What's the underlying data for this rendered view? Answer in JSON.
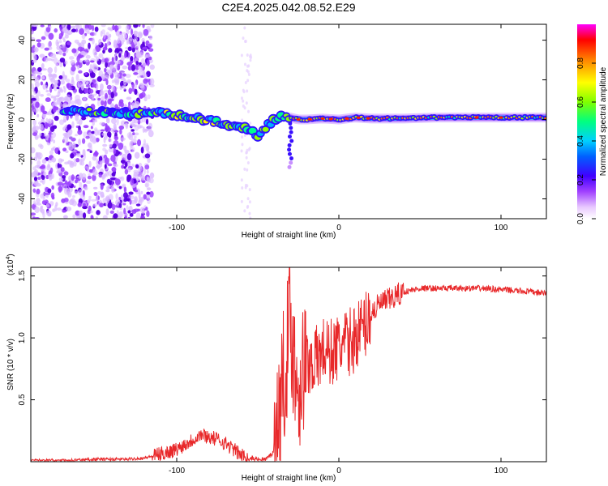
{
  "title": "C2E4.2025.042.08.52.E29",
  "chart_data": [
    {
      "type": "heatmap",
      "xlabel": "Height of straight line (km)",
      "ylabel": "Frequency (Hz)",
      "xlim": [
        -190,
        128
      ],
      "ylim": [
        -50,
        48
      ],
      "xticks": [
        -100,
        0,
        100
      ],
      "yticks": [
        -40,
        -20,
        0,
        20,
        40
      ],
      "colorbar": {
        "label": "Normalized spectral amplitude",
        "range": [
          0,
          1
        ],
        "ticks": [
          0.0,
          0.2,
          0.4,
          0.6,
          0.8
        ],
        "colors": [
          "#ffffff",
          "#cc88ff",
          "#6600ff",
          "#0000ff",
          "#00ccff",
          "#00ff80",
          "#80ff00",
          "#ffff00",
          "#ff8000",
          "#ff0000",
          "#ff00ff"
        ]
      },
      "ridge": {
        "x": [
          -190,
          -160,
          -140,
          -120,
          -110,
          -100,
          -90,
          -80,
          -70,
          -60,
          -55,
          -50,
          -45,
          -40,
          -35,
          -30,
          -25,
          -20,
          -10,
          0,
          10,
          20,
          40,
          60,
          80,
          100,
          128
        ],
        "y": [
          4,
          4,
          3.5,
          3.5,
          3,
          2,
          0.5,
          -0.5,
          -2,
          -4,
          -6,
          -8,
          -4,
          0,
          2,
          1,
          0,
          0,
          0.5,
          0,
          1,
          0.5,
          0.5,
          1,
          1,
          1,
          1
        ]
      },
      "grid": false,
      "legend": "colorbar-right"
    },
    {
      "type": "line",
      "xlabel": "Height of straight line (km)",
      "ylabel": "SNR (10 * v/v)",
      "scale_label": "(x10",
      "scale_exp": "4",
      "xlim": [
        -190,
        128
      ],
      "ylim": [
        0,
        1.57
      ],
      "xticks": [
        -100,
        0,
        100
      ],
      "yticks": [
        0.5,
        1.0,
        1.5
      ],
      "ytick_labels": [
        "0.5",
        "1.0",
        "1.5"
      ],
      "line_color": "#e8282a",
      "series": [
        {
          "x": [
            -190,
            -170,
            -150,
            -130,
            -120,
            -110,
            -100,
            -95,
            -90,
            -85,
            -80,
            -75,
            -70,
            -65,
            -60,
            -55,
            -50,
            -45,
            -40,
            -37,
            -35,
            -32,
            -30,
            -28,
            -25,
            -22,
            -20,
            -18,
            -15,
            -12,
            -10,
            -5,
            0,
            5,
            10,
            12,
            15,
            20,
            25,
            30,
            40,
            50,
            60,
            70,
            80,
            90,
            100,
            110,
            120,
            128
          ],
          "y": [
            0.01,
            0.01,
            0.02,
            0.02,
            0.03,
            0.06,
            0.1,
            0.14,
            0.18,
            0.22,
            0.2,
            0.18,
            0.15,
            0.1,
            0.05,
            0.03,
            0.02,
            0.02,
            0.08,
            0.35,
            0.6,
            0.9,
            1.2,
            0.85,
            0.6,
            0.75,
            0.8,
            0.8,
            0.82,
            0.85,
            0.9,
            0.88,
            0.92,
            0.95,
            1.0,
            1.05,
            1.08,
            1.2,
            1.27,
            1.3,
            1.37,
            1.4,
            1.4,
            1.4,
            1.4,
            1.4,
            1.39,
            1.38,
            1.37,
            1.36
          ]
        }
      ],
      "grid": false,
      "legend": "none"
    }
  ]
}
